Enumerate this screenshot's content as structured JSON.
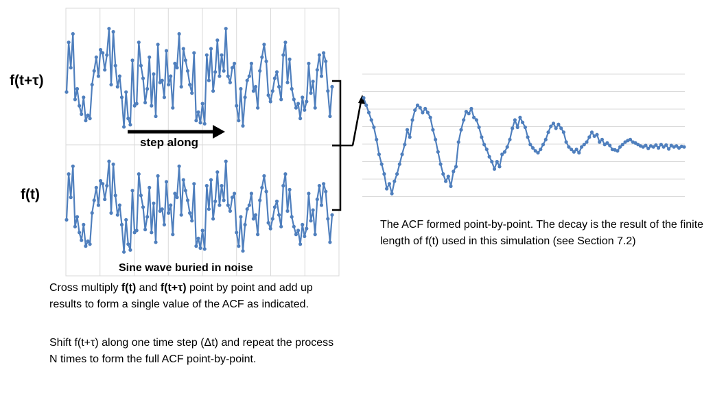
{
  "labels": {
    "f_shifted": "f(t+τ)",
    "f": "f(t)",
    "step_along": "step along",
    "sine_caption": "Sine wave buried in noise"
  },
  "left_text": {
    "p1_a": "Cross multiply ",
    "p1_b": "f(t)",
    "p1_c": " and ",
    "p1_d": "f(t+τ)",
    "p1_e": " point by point and add up results to form a single value of the ACF as indicated.",
    "p2": "Shift f(t+τ) along one time step (Δt) and repeat the process N times to form the full ACF point-by-point."
  },
  "right_text": {
    "acf_note": "The ACF formed point-by-point.  The decay is the result of the finite length of f(t)  used in this simulation (see Section  7.2)"
  },
  "colors": {
    "series": "#4f7fbd",
    "grid": "#d9d9d9",
    "arrow": "#000000"
  },
  "chart_data": [
    {
      "type": "line",
      "name": "noisy-signal-top",
      "values": [
        0.35,
        0.82,
        0.58,
        0.9,
        0.28,
        0.38,
        0.22,
        0.14,
        0.3,
        0.08,
        0.13,
        0.1,
        0.42,
        0.55,
        0.68,
        0.5,
        0.75,
        0.72,
        0.56,
        0.7,
        0.95,
        0.42,
        0.92,
        0.6,
        0.4,
        0.5,
        0.3,
        0.02,
        0.35,
        0.1,
        0.04,
        0.65,
        0.22,
        0.24,
        0.82,
        0.6,
        0.48,
        0.25,
        0.38,
        0.68,
        0.22,
        0.52,
        0.12,
        0.8,
        0.44,
        0.46,
        0.3,
        0.74,
        0.42,
        0.5,
        0.2,
        0.62,
        0.58,
        0.9,
        0.4,
        0.76,
        0.65,
        0.55,
        0.42,
        0.34,
        0.72,
        0.08,
        0.16,
        0.06,
        0.24,
        0.05,
        0.7,
        0.46,
        0.76,
        0.36,
        0.54,
        0.84,
        0.5,
        0.7,
        0.55,
        0.95,
        0.5,
        0.44,
        0.58,
        0.62,
        0.22,
        0.08,
        0.38,
        0.03,
        0.3,
        0.46,
        0.5,
        0.62,
        0.36,
        0.4,
        0.2,
        0.55,
        0.68,
        0.8,
        0.64,
        0.32,
        0.26,
        0.36,
        0.48,
        0.54,
        0.4,
        0.28,
        0.7,
        0.82,
        0.44,
        0.66,
        0.38,
        0.28,
        0.2,
        0.24,
        0.1,
        0.3,
        0.18,
        0.26,
        0.62,
        0.34,
        0.45,
        0.2,
        0.56,
        0.7,
        0.5,
        0.72,
        0.64,
        0.36,
        0.12,
        0.4
      ]
    },
    {
      "type": "line",
      "name": "noisy-signal-bottom",
      "values": [
        0.35,
        0.82,
        0.58,
        0.9,
        0.28,
        0.38,
        0.22,
        0.14,
        0.3,
        0.08,
        0.13,
        0.1,
        0.42,
        0.55,
        0.68,
        0.5,
        0.75,
        0.72,
        0.56,
        0.7,
        0.95,
        0.42,
        0.92,
        0.6,
        0.4,
        0.5,
        0.3,
        0.02,
        0.35,
        0.1,
        0.04,
        0.65,
        0.22,
        0.24,
        0.82,
        0.6,
        0.48,
        0.25,
        0.38,
        0.68,
        0.22,
        0.52,
        0.12,
        0.8,
        0.44,
        0.46,
        0.3,
        0.74,
        0.42,
        0.5,
        0.2,
        0.62,
        0.58,
        0.9,
        0.4,
        0.76,
        0.65,
        0.55,
        0.42,
        0.34,
        0.72,
        0.08,
        0.16,
        0.06,
        0.24,
        0.05,
        0.7,
        0.46,
        0.76,
        0.36,
        0.54,
        0.84,
        0.5,
        0.7,
        0.55,
        0.95,
        0.5,
        0.44,
        0.58,
        0.62,
        0.22,
        0.08,
        0.38,
        0.03,
        0.3,
        0.46,
        0.5,
        0.62,
        0.36,
        0.4,
        0.2,
        0.55,
        0.68,
        0.8,
        0.64,
        0.32,
        0.26,
        0.36,
        0.48,
        0.54,
        0.4,
        0.28,
        0.7,
        0.82,
        0.44,
        0.66,
        0.38,
        0.28,
        0.2,
        0.24,
        0.1,
        0.3,
        0.18,
        0.26,
        0.62,
        0.34,
        0.45,
        0.2,
        0.56,
        0.7,
        0.5,
        0.72,
        0.64,
        0.36,
        0.12,
        0.4
      ]
    },
    {
      "type": "line",
      "name": "acf",
      "values": [
        1.0,
        0.85,
        0.7,
        0.55,
        0.4,
        0.15,
        -0.15,
        -0.35,
        -0.55,
        -0.85,
        -0.75,
        -0.95,
        -0.7,
        -0.55,
        -0.35,
        -0.15,
        0.05,
        0.35,
        0.2,
        0.55,
        0.75,
        0.85,
        0.8,
        0.7,
        0.78,
        0.7,
        0.6,
        0.35,
        0.15,
        -0.1,
        -0.35,
        -0.55,
        -0.7,
        -0.6,
        -0.8,
        -0.5,
        -0.4,
        0.1,
        0.35,
        0.55,
        0.72,
        0.68,
        0.78,
        0.6,
        0.55,
        0.4,
        0.2,
        0.05,
        -0.05,
        -0.2,
        -0.3,
        -0.45,
        -0.3,
        -0.4,
        -0.15,
        -0.1,
        0.0,
        0.15,
        0.38,
        0.55,
        0.4,
        0.6,
        0.5,
        0.4,
        0.2,
        0.05,
        -0.02,
        -0.08,
        -0.12,
        -0.05,
        0.05,
        0.15,
        0.3,
        0.42,
        0.48,
        0.38,
        0.46,
        0.38,
        0.3,
        0.1,
        0.0,
        -0.05,
        -0.1,
        -0.05,
        -0.12,
        0.0,
        0.05,
        0.1,
        0.2,
        0.3,
        0.22,
        0.25,
        0.1,
        0.15,
        0.05,
        0.08,
        0.03,
        -0.05,
        -0.06,
        -0.08,
        0.0,
        0.05,
        0.1,
        0.13,
        0.15,
        0.1,
        0.08,
        0.05,
        0.02,
        0.0,
        0.03,
        -0.03,
        0.02,
        0.0,
        0.04,
        -0.02,
        0.05,
        0.0,
        0.04,
        -0.04,
        0.03,
        0.0,
        0.02,
        -0.02,
        0.01,
        0.0
      ],
      "ylim": [
        -1.2,
        1.05
      ]
    }
  ]
}
